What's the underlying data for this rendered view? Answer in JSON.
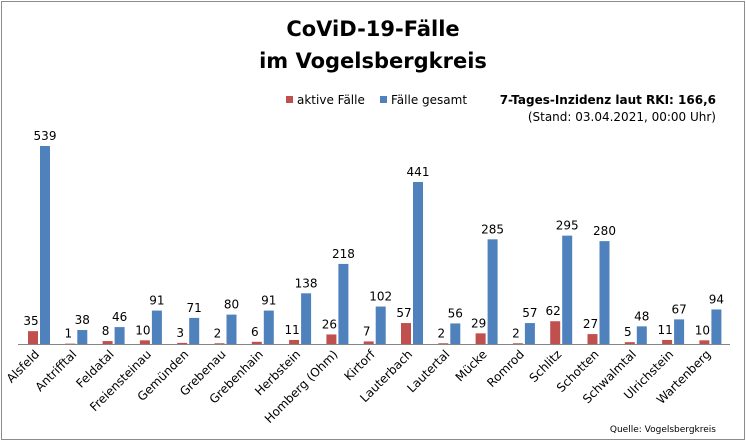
{
  "chart_data": {
    "type": "bar",
    "title": "CoViD-19-Fälle",
    "subtitle": "im Vogelsbergkreis",
    "categories": [
      "Alsfeld",
      "Antrifftal",
      "Feldatal",
      "Freiensteinau",
      "Gemünden",
      "Grebenau",
      "Grebenhain",
      "Herbstein",
      "Homberg (Ohm)",
      "Kirtorf",
      "Lauterbach",
      "Lautertal",
      "Mücke",
      "Romrod",
      "Schlitz",
      "Schotten",
      "Schwalmtal",
      "Ulrichstein",
      "Wartenberg"
    ],
    "series": [
      {
        "name": "aktive Fälle",
        "color": "#c0504d",
        "values": [
          35,
          1,
          8,
          10,
          3,
          2,
          6,
          11,
          26,
          7,
          57,
          2,
          29,
          2,
          62,
          27,
          5,
          11,
          10
        ]
      },
      {
        "name": "Fälle gesamt",
        "color": "#4f81bd",
        "values": [
          539,
          38,
          46,
          91,
          71,
          80,
          91,
          138,
          218,
          102,
          441,
          56,
          285,
          57,
          295,
          280,
          48,
          67,
          94
        ]
      }
    ],
    "ylim": [
      0,
      560
    ],
    "grid": false,
    "legend_position": "top",
    "data_labels": true,
    "annotations": {
      "incidence": "7-Tages-Inzidenz laut RKI: 166,6",
      "stand": "(Stand: 03.04.2021, 00:00 Uhr)",
      "source": "Quelle: Vogelsbergkreis"
    }
  }
}
